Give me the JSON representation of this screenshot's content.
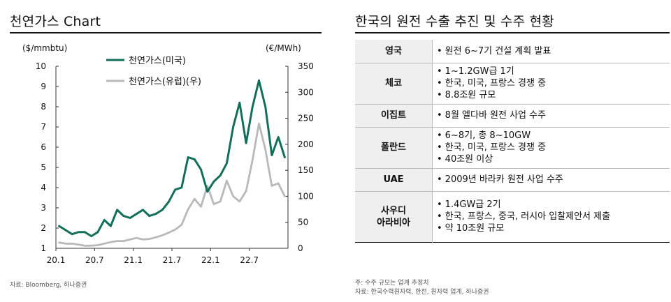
{
  "left": {
    "title": "천연가스 Chart",
    "source": "자료: Bloomberg, 하나증권"
  },
  "chart_data": {
    "type": "line",
    "title": "",
    "left_axis_unit": "($/mmbtu)",
    "right_axis_unit": "(€/MWh)",
    "ylim_left": [
      1,
      10
    ],
    "ylim_right": [
      0,
      350
    ],
    "y_ticks_left": [
      "1",
      "2",
      "3",
      "4",
      "5",
      "6",
      "7",
      "8",
      "9",
      "10"
    ],
    "y_ticks_right": [
      "0",
      "50",
      "100",
      "150",
      "200",
      "250",
      "300",
      "350"
    ],
    "x_tick_labels": [
      "20.1",
      "20.7",
      "21.1",
      "21.7",
      "22.1",
      "22.7"
    ],
    "x_tick_dates": [
      "2020-01",
      "2020-07",
      "2021-01",
      "2021-07",
      "2022-01",
      "2022-07"
    ],
    "xlim": [
      "2020-01",
      "2022-12"
    ],
    "grid": false,
    "legend_position": "top-left",
    "colors": {
      "us": "#136f5a",
      "eu": "#b9b9b9"
    },
    "series": [
      {
        "name": "천연가스(미국)",
        "axis": "left",
        "x": [
          "2020-01",
          "2020-02",
          "2020-03",
          "2020-04",
          "2020-05",
          "2020-06",
          "2020-07",
          "2020-08",
          "2020-09",
          "2020-10",
          "2020-11",
          "2020-12",
          "2021-01",
          "2021-02",
          "2021-03",
          "2021-04",
          "2021-05",
          "2021-06",
          "2021-07",
          "2021-08",
          "2021-09",
          "2021-10",
          "2021-11",
          "2021-12",
          "2022-01",
          "2022-02",
          "2022-03",
          "2022-04",
          "2022-05",
          "2022-06",
          "2022-07",
          "2022-08",
          "2022-09",
          "2022-10",
          "2022-11",
          "2022-12"
        ],
        "values": [
          2.1,
          1.9,
          1.7,
          1.8,
          1.8,
          1.6,
          1.8,
          2.4,
          2.1,
          2.9,
          2.6,
          2.5,
          2.7,
          2.9,
          2.6,
          2.7,
          2.9,
          3.3,
          3.9,
          4.0,
          5.5,
          5.4,
          4.9,
          3.8,
          4.3,
          4.6,
          5.2,
          7.0,
          8.2,
          6.2,
          8.0,
          9.3,
          8.0,
          5.6,
          6.5,
          5.5
        ]
      },
      {
        "name": "천연가스(유럽)(우)",
        "axis": "right",
        "x": [
          "2020-01",
          "2020-02",
          "2020-03",
          "2020-04",
          "2020-05",
          "2020-06",
          "2020-07",
          "2020-08",
          "2020-09",
          "2020-10",
          "2020-11",
          "2020-12",
          "2021-01",
          "2021-02",
          "2021-03",
          "2021-04",
          "2021-05",
          "2021-06",
          "2021-07",
          "2021-08",
          "2021-09",
          "2021-10",
          "2021-11",
          "2021-12",
          "2022-01",
          "2022-02",
          "2022-03",
          "2022-04",
          "2022-05",
          "2022-06",
          "2022-07",
          "2022-08",
          "2022-09",
          "2022-10",
          "2022-11",
          "2022-12"
        ],
        "values": [
          11,
          9,
          9,
          7,
          5,
          5,
          6,
          9,
          12,
          14,
          14,
          17,
          20,
          17,
          18,
          21,
          25,
          30,
          36,
          45,
          75,
          95,
          80,
          120,
          85,
          90,
          130,
          100,
          90,
          110,
          170,
          240,
          190,
          120,
          125,
          100
        ]
      }
    ]
  },
  "right": {
    "title": "한국의 원전 수출 추진 및 수주 현황",
    "rows": [
      {
        "country": [
          "영국"
        ],
        "items": [
          "원전 6~7기 건설 계획 발표"
        ]
      },
      {
        "country": [
          "체코"
        ],
        "items": [
          "1~1.2GW급 1기",
          "한국, 미국, 프랑스 경쟁 중",
          "8.8조원 규모"
        ]
      },
      {
        "country": [
          "이집트"
        ],
        "items": [
          "8월 엘다바 원전 사업 수주"
        ]
      },
      {
        "country": [
          "폴란드"
        ],
        "items": [
          "6~8기, 총 8~10GW",
          "한국, 미국, 프랑스 경쟁 중",
          "40조원 이상"
        ]
      },
      {
        "country": [
          "UAE"
        ],
        "items": [
          "2009년 바라카 원전 사업 수주"
        ]
      },
      {
        "country": [
          "사우디",
          "아라비아"
        ],
        "items": [
          "1.4GW급 2기",
          "한국, 프랑스, 중국, 러시아 입찰제안서 제출",
          "약 10조원 규모"
        ]
      }
    ],
    "note": "주: 수주 규모는 업계 추정치",
    "source": "자료: 한국수력원자력, 한전, 원자력 업계, 하나증권"
  }
}
